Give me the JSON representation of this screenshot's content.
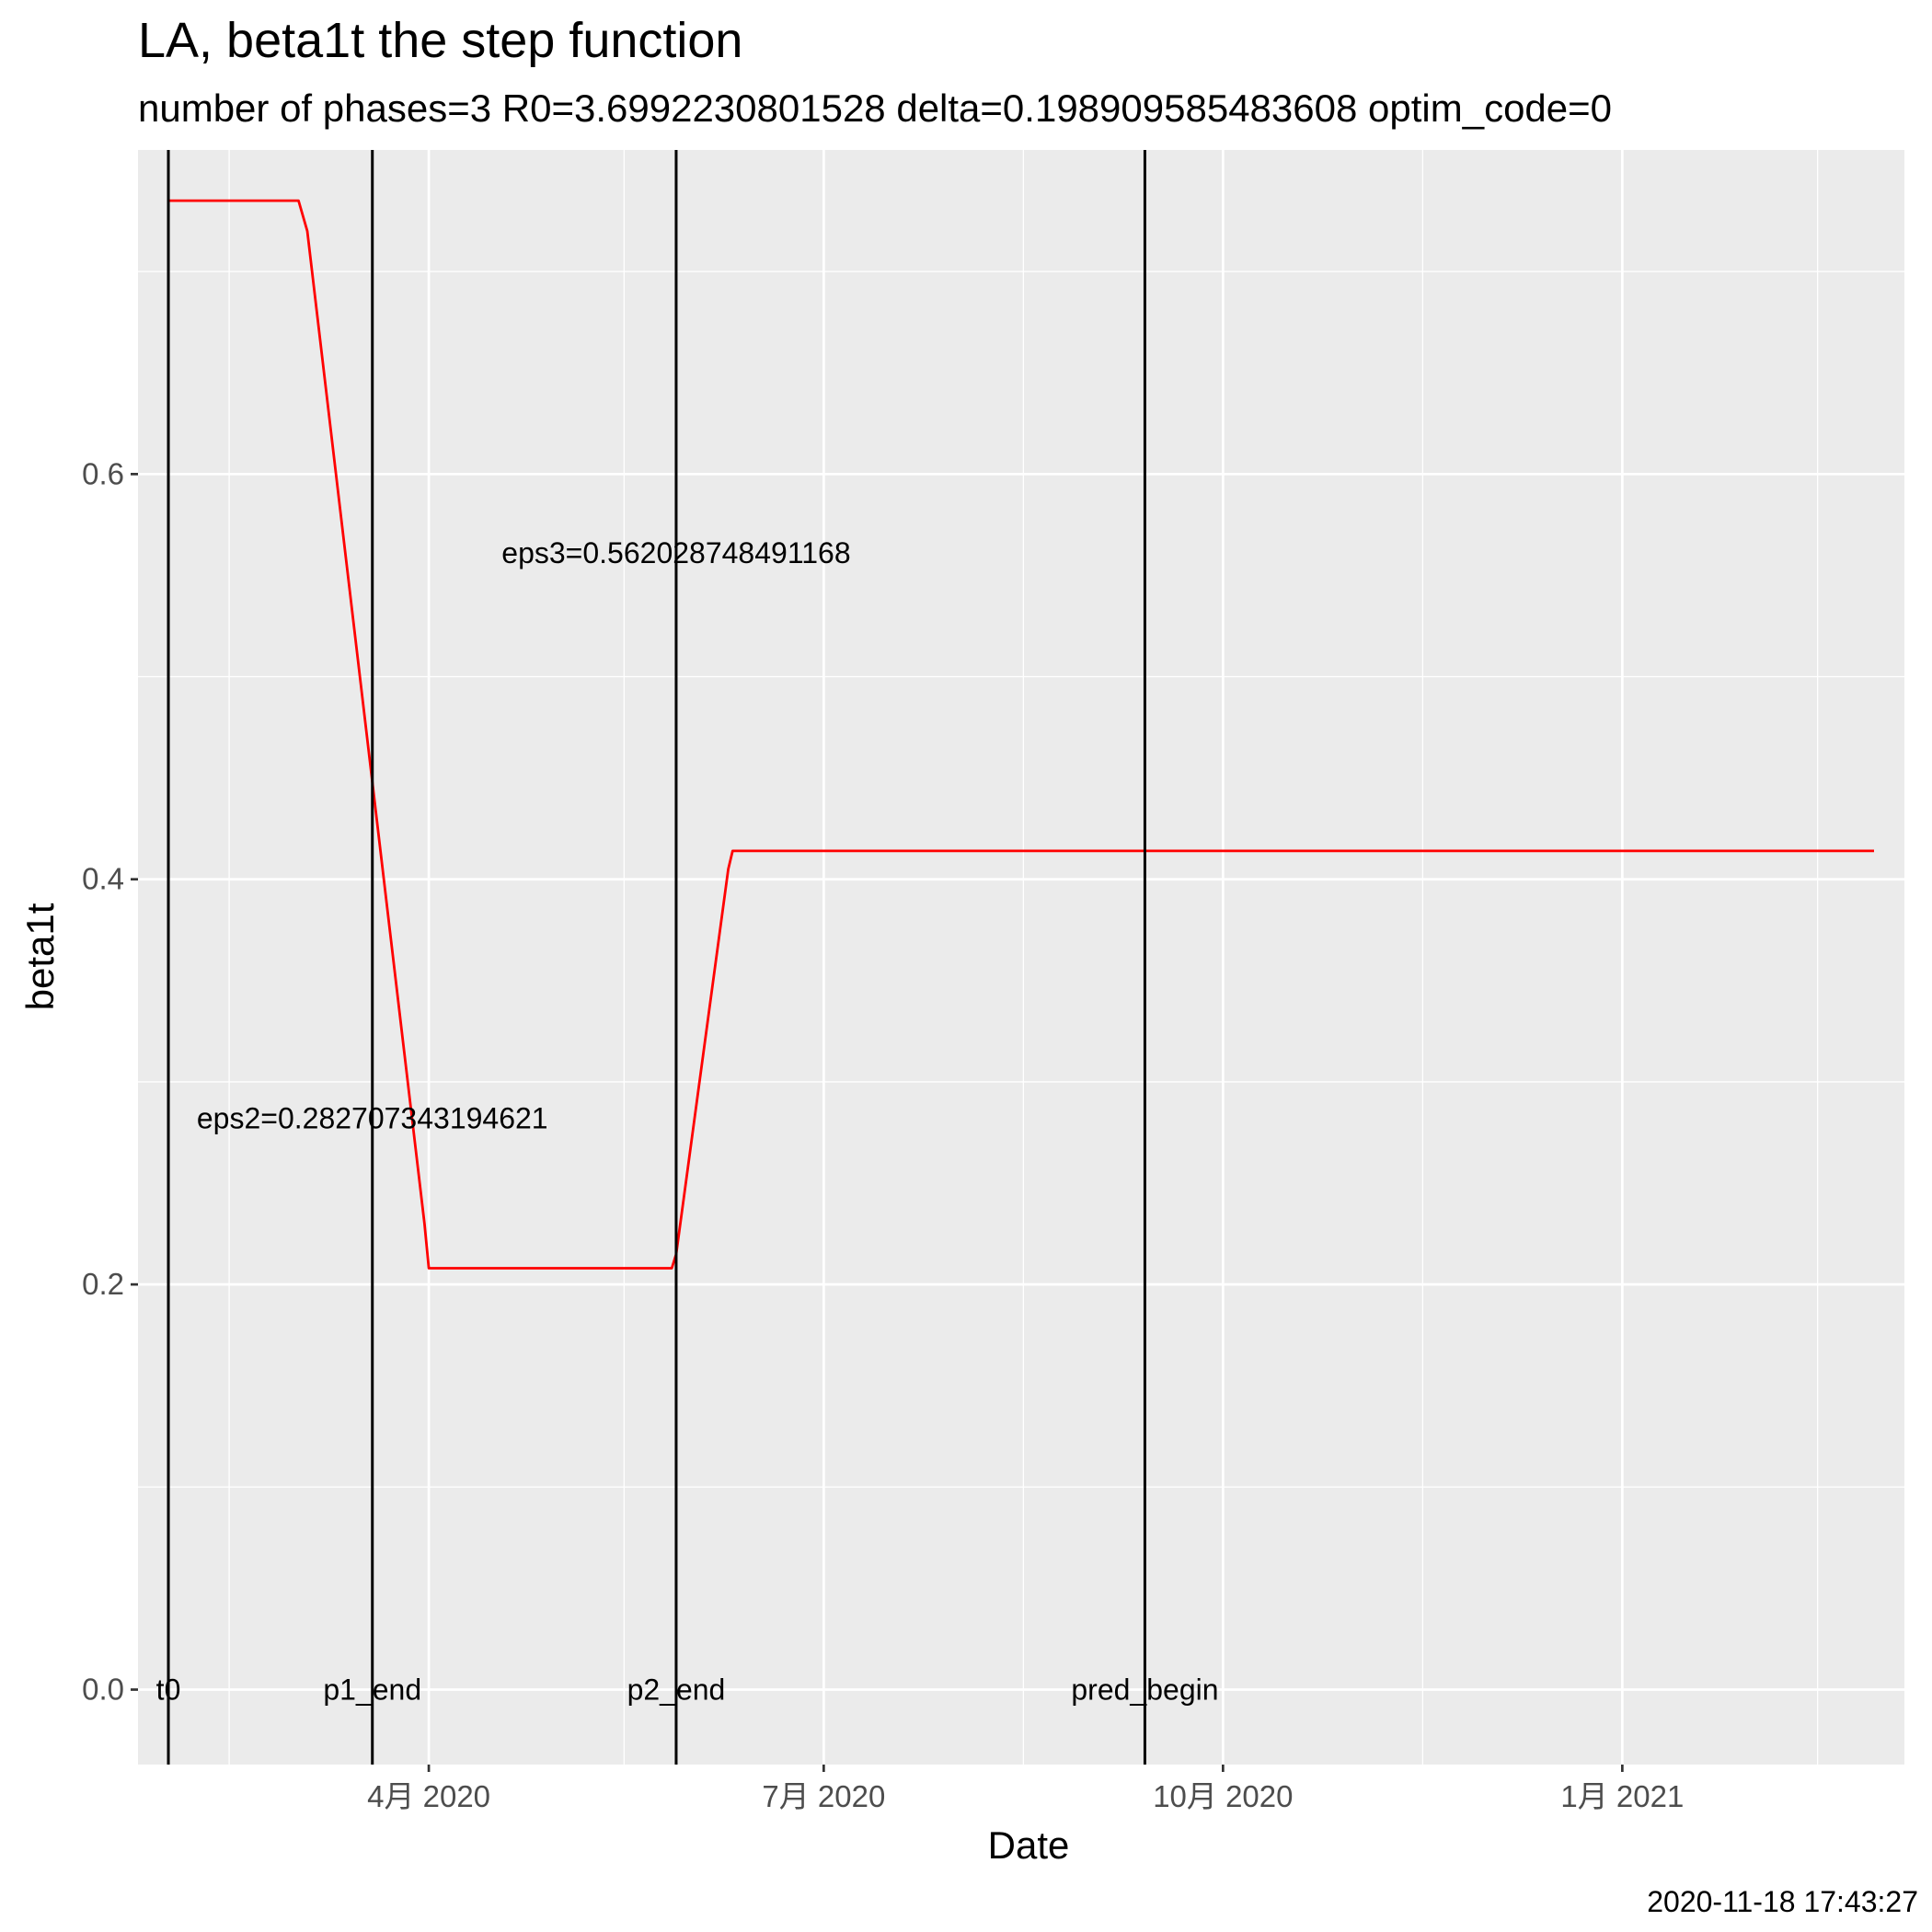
{
  "chart_data": {
    "type": "line",
    "title": "LA, beta1t the step function",
    "subtitle": "number of phases=3   R0=3.6992230801528   delta=0.198909585483608   optim_code=0",
    "xlabel": "Date",
    "ylabel": "beta1t",
    "caption": "2020-11-18 17:43:27",
    "xlim": [
      "2020-01-25",
      "2021-03-07"
    ],
    "ylim": [
      -0.037,
      0.76
    ],
    "x_ticks": [
      {
        "date": "2020-04-01",
        "label": "4月 2020"
      },
      {
        "date": "2020-07-01",
        "label": "7月 2020"
      },
      {
        "date": "2020-10-01",
        "label": "10月 2020"
      },
      {
        "date": "2021-01-01",
        "label": "1月 2021"
      }
    ],
    "x_minor_ticks": [
      "2020-02-15",
      "2020-05-16",
      "2020-08-16",
      "2020-11-16",
      "2021-02-15"
    ],
    "y_ticks": [
      {
        "value": 0.0,
        "label": "0.0"
      },
      {
        "value": 0.2,
        "label": "0.2"
      },
      {
        "value": 0.4,
        "label": "0.4"
      },
      {
        "value": 0.6,
        "label": "0.6"
      }
    ],
    "y_minor_ticks": [
      0.1,
      0.3,
      0.5,
      0.7
    ],
    "grid": true,
    "series": [
      {
        "color": "#ff0000",
        "x": [
          "2020-02-01",
          "2020-03-02",
          "2020-03-04",
          "2020-03-31",
          "2020-04-01",
          "2020-05-27",
          "2020-05-28",
          "2020-06-09",
          "2020-06-10",
          "2021-02-28"
        ],
        "y": [
          0.735,
          0.735,
          0.72,
          0.23,
          0.208,
          0.208,
          0.215,
          0.405,
          0.414,
          0.414
        ]
      }
    ],
    "vlines": [
      {
        "date": "2020-02-01",
        "label": "t0"
      },
      {
        "date": "2020-03-19",
        "label": "p1_end"
      },
      {
        "date": "2020-05-28",
        "label": "p2_end"
      },
      {
        "date": "2020-09-13",
        "label": "pred_begin"
      }
    ],
    "annotations": [
      {
        "text": "eps2=0.282707343194621",
        "date": "2020-03-19",
        "value": 0.282
      },
      {
        "text": "eps3=0.562028748491168",
        "date": "2020-05-28",
        "value": 0.561
      }
    ],
    "colors": {
      "panel": "#ebebeb",
      "grid": "#ffffff",
      "line": "#ff0000",
      "vline": "#000000"
    }
  }
}
